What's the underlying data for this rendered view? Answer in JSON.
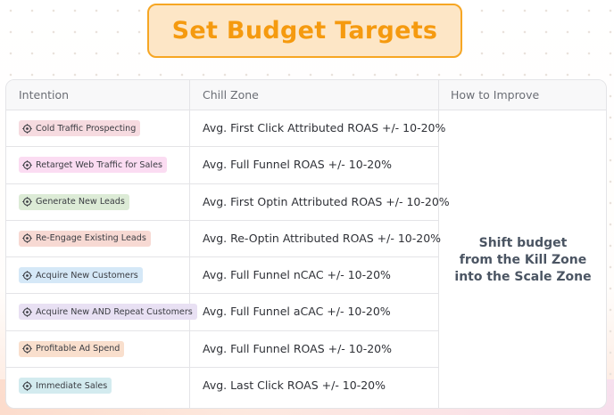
{
  "title": "Set Budget Targets",
  "table": {
    "headers": [
      "Intention",
      "Chill Zone",
      "How to Improve"
    ],
    "rows": [
      {
        "intention": "Cold Traffic Prospecting",
        "metric": "Avg. First Click Attributed ROAS +/- 10-20%",
        "tag_bg": "#f6dbe0"
      },
      {
        "intention": "Retarget Web Traffic for Sales",
        "metric": "Avg. Full Funnel ROAS +/- 10-20%",
        "tag_bg": "#fbdcf2"
      },
      {
        "intention": "Generate New Leads",
        "metric": "Avg. First Optin Attributed ROAS +/- 10-20%",
        "tag_bg": "#dcebd6"
      },
      {
        "intention": "Re-Engage Existing Leads",
        "metric": "Avg. Re-Optin Attributed ROAS +/- 10-20%",
        "tag_bg": "#f7d9d3"
      },
      {
        "intention": "Acquire New Customers",
        "metric": "Avg. Full Funnel nCAC +/- 10-20%",
        "tag_bg": "#d5e8f7"
      },
      {
        "intention": "Acquire New AND Repeat Customers",
        "metric": "Avg. Full Funnel aCAC +/- 10-20%",
        "tag_bg": "#e8e0f3"
      },
      {
        "intention": "Profitable Ad Spend",
        "metric": "Avg. Full Funnel ROAS +/- 10-20%",
        "tag_bg": "#f9dfcd"
      },
      {
        "intention": "Immediate Sales",
        "metric": "Avg. Last Click ROAS +/- 10-20%",
        "tag_bg": "#d3ebef"
      }
    ],
    "how_to_improve": [
      "Shift budget",
      "from the Kill Zone",
      "into the Scale Zone"
    ]
  },
  "icons": {
    "tag_icon": "target-icon"
  }
}
